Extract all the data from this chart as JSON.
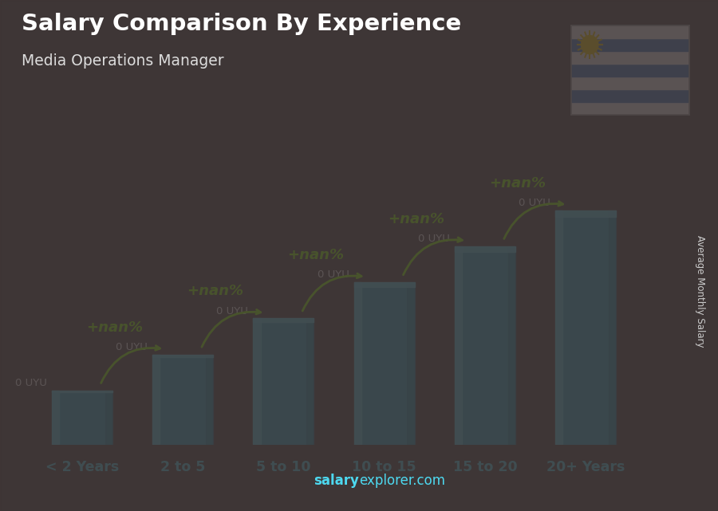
{
  "title": "Salary Comparison By Experience",
  "subtitle": "Media Operations Manager",
  "categories": [
    "< 2 Years",
    "2 to 5",
    "5 to 10",
    "10 to 15",
    "15 to 20",
    "20+ Years"
  ],
  "values": [
    1.5,
    2.5,
    3.5,
    4.5,
    5.5,
    6.5
  ],
  "bar_color_main": "#2db8d8",
  "bar_color_light": "#5cd8f0",
  "bar_color_dark": "#1a8aaa",
  "value_labels": [
    "0 UYU",
    "0 UYU",
    "0 UYU",
    "0 UYU",
    "0 UYU",
    "0 UYU"
  ],
  "pct_labels": [
    "+nan%",
    "+nan%",
    "+nan%",
    "+nan%",
    "+nan%"
  ],
  "xlabel_color": "#4dd9f0",
  "title_color": "#ffffff",
  "subtitle_color": "#dddddd",
  "value_label_color": "#ffffff",
  "pct_label_color": "#88ff00",
  "watermark_salary": "salary",
  "watermark_rest": "explorer.com",
  "watermark_color": "#4dd9f0",
  "side_label": "Average Monthly Salary",
  "side_label_color": "#cccccc",
  "bg_color": "#4a4040",
  "ylim": [
    0,
    8.5
  ],
  "bar_width": 0.6,
  "flag_stripes": [
    "#ffffff",
    "#4a7fcb",
    "#ffffff",
    "#4a7fcb",
    "#ffffff",
    "#4a7fcb",
    "#ffffff"
  ],
  "flag_sun_color": "#FFD700"
}
